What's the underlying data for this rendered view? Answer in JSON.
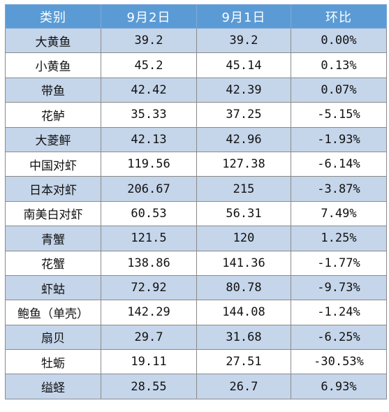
{
  "headers": [
    "类别",
    "9月2日",
    "9月1日",
    "环比"
  ],
  "rows": [
    [
      "大黄鱼",
      "39.2",
      "39.2",
      "0.00%"
    ],
    [
      "小黄鱼",
      "45.2",
      "45.14",
      "0.13%"
    ],
    [
      "带鱼",
      "42.42",
      "42.39",
      "0.07%"
    ],
    [
      "花鲈",
      "35.33",
      "37.25",
      "-5.15%"
    ],
    [
      "大菱鲆",
      "42.13",
      "42.96",
      "-1.93%"
    ],
    [
      "中国对虾",
      "119.56",
      "127.38",
      "-6.14%"
    ],
    [
      "日本对虾",
      "206.67",
      "215",
      "-3.87%"
    ],
    [
      "南美白对虾",
      "60.53",
      "56.31",
      "7.49%"
    ],
    [
      "青蟹",
      "121.5",
      "120",
      "1.25%"
    ],
    [
      "花蟹",
      "138.86",
      "141.36",
      "-1.77%"
    ],
    [
      "虾蛄",
      "72.92",
      "80.78",
      "-9.73%"
    ],
    [
      "鲍鱼（单壳）",
      "142.29",
      "144.08",
      "-1.24%"
    ],
    [
      "扇贝",
      "29.7",
      "31.68",
      "-6.25%"
    ],
    [
      "牡蛎",
      "19.11",
      "27.51",
      "-30.53%"
    ],
    [
      "缢蛏",
      "28.55",
      "26.7",
      "6.93%"
    ]
  ],
  "colors": {
    "header_bg": "#5b9bd5",
    "header_text": "#ffffff",
    "band_bg": "#c5d5ea",
    "plain_bg": "#ffffff",
    "border": "#8a8a8a"
  }
}
